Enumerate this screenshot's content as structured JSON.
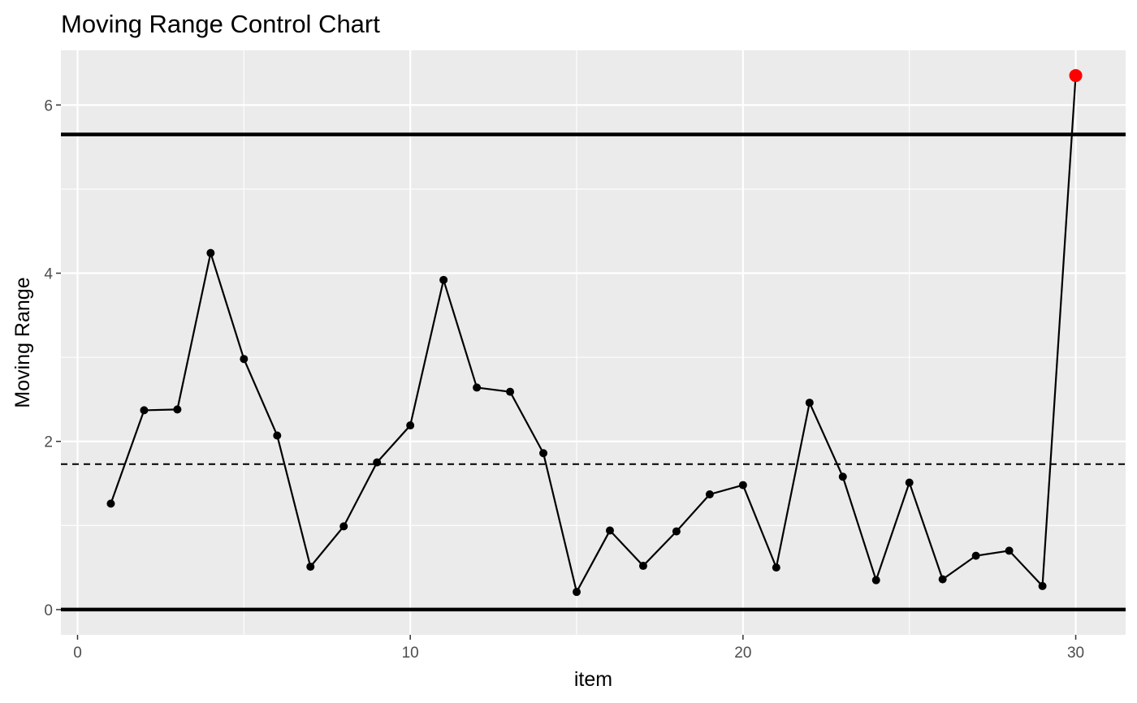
{
  "chart_data": {
    "type": "line",
    "title": "Moving Range Control Chart",
    "xlabel": "item",
    "ylabel": "Moving Range",
    "xlim": [
      -0.5,
      31.5
    ],
    "ylim": [
      -0.3,
      6.65
    ],
    "x_ticks": [
      0,
      10,
      20,
      30
    ],
    "x_tick_labels": [
      "0",
      "10",
      "20",
      "30"
    ],
    "y_ticks": [
      0,
      2,
      4,
      6
    ],
    "y_tick_labels": [
      "0",
      "2",
      "4",
      "6"
    ],
    "grid": true,
    "legend": "none",
    "panel_background": "#ebebeb",
    "line_color": "#000000",
    "out_of_control_color": "#ff0000",
    "control_limits": {
      "ucl": 5.65,
      "center": 1.73,
      "lcl": 0
    },
    "series": [
      {
        "x": [
          1,
          2,
          3,
          4,
          5,
          6,
          7,
          8,
          9,
          10,
          11,
          12,
          13,
          14,
          15,
          16,
          17,
          18,
          19,
          20,
          21,
          22,
          23,
          24,
          25,
          26,
          27,
          28,
          29,
          30
        ],
        "values": [
          1.26,
          2.37,
          2.38,
          4.24,
          2.98,
          2.07,
          0.51,
          0.99,
          1.75,
          2.19,
          3.92,
          2.64,
          2.59,
          1.86,
          0.21,
          0.94,
          0.52,
          0.93,
          1.37,
          1.48,
          0.5,
          2.46,
          1.58,
          0.35,
          1.51,
          0.36,
          0.64,
          0.7,
          0.28,
          6.35
        ]
      }
    ],
    "out_of_control_points": [
      30
    ]
  }
}
